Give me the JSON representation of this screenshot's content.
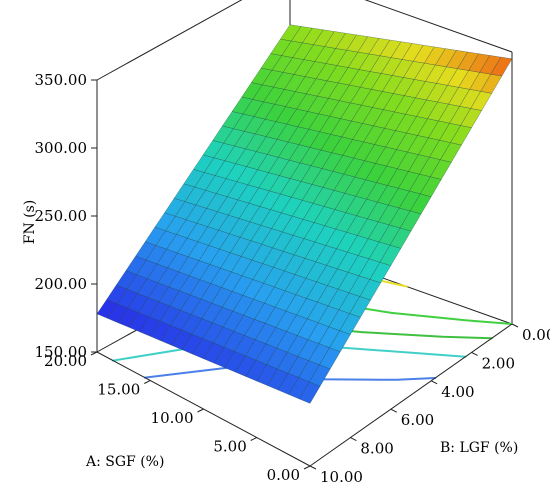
{
  "chart_data": {
    "type": "surface3d",
    "zlabel": "FN (s)",
    "xlabel": "A: SGF (%)",
    "ylabel": "B: LGF (%)",
    "x_ticks": [
      "0.00",
      "5.00",
      "10.00",
      "15.00",
      "20.00"
    ],
    "y_ticks": [
      "0.00",
      "2.00",
      "4.00",
      "6.00",
      "8.00",
      "10.00"
    ],
    "z_ticks": [
      "150.00",
      "200.00",
      "250.00",
      "300.00",
      "350.00"
    ],
    "xlim": [
      0,
      20
    ],
    "ylim": [
      0,
      10
    ],
    "zlim": [
      150,
      350
    ],
    "surface": {
      "corners": [
        {
          "x": 20,
          "y": 10,
          "z": 178
        },
        {
          "x": 0,
          "y": 10,
          "z": 196
        },
        {
          "x": 20,
          "y": 0,
          "z": 312
        },
        {
          "x": 0,
          "y": 0,
          "z": 345
        }
      ],
      "grid_divisions": 20,
      "colormap": "blue-green-yellow-red"
    },
    "contours": [
      {
        "color": "#4a80e8"
      },
      {
        "color": "#40d0c8"
      },
      {
        "color": "#40c040"
      },
      {
        "color": "#40d040"
      },
      {
        "color": "#e8e020"
      }
    ],
    "grid": false
  }
}
